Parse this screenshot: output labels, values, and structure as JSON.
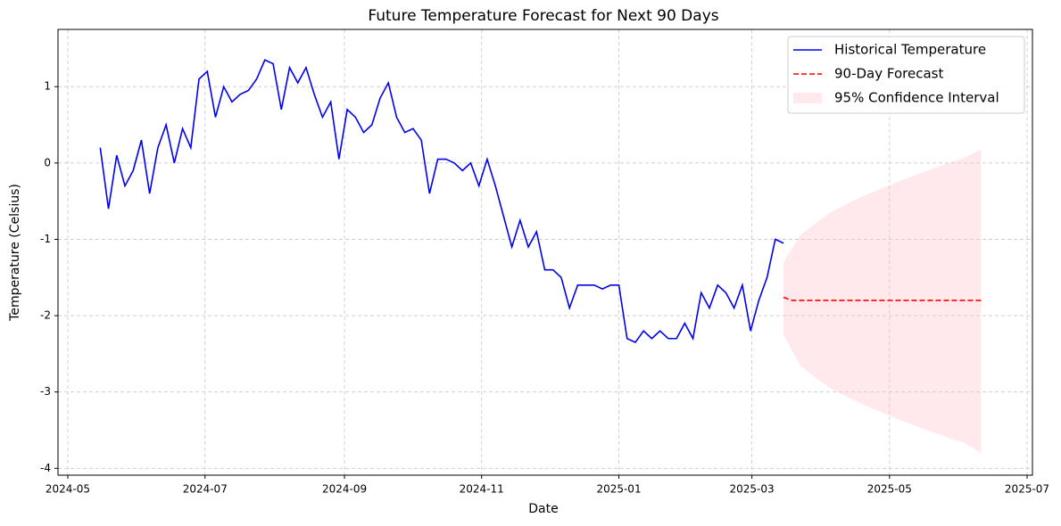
{
  "chart_data": {
    "type": "line",
    "title": "Future Temperature Forecast for Next 90 Days",
    "xlabel": "Date",
    "ylabel": "Temperature (Celsius)",
    "xlim": [
      2024.3187,
      2025.5024
    ],
    "xticks": [
      {
        "value": 2024.3306,
        "label": "2024-05"
      },
      {
        "value": 2024.4973,
        "label": "2024-07"
      },
      {
        "value": 2024.6667,
        "label": "2024-09"
      },
      {
        "value": 2024.8333,
        "label": "2024-11"
      },
      {
        "value": 2025.0,
        "label": "2025-01"
      },
      {
        "value": 2025.1616,
        "label": "2025-03"
      },
      {
        "value": 2025.3288,
        "label": "2025-05"
      },
      {
        "value": 2025.4959,
        "label": "2025-07"
      }
    ],
    "ylim": [
      -4.09,
      1.75
    ],
    "yticks": [
      -4,
      -3,
      -2,
      -1,
      0,
      1
    ],
    "grid": true,
    "legend": "upper right",
    "series": [
      {
        "name": "Historical Temperature",
        "color": "#0000ee",
        "dash": false,
        "x": [
          2024.37,
          2024.38,
          2024.39,
          2024.4,
          2024.41,
          2024.42,
          2024.43,
          2024.44,
          2024.45,
          2024.46,
          2024.47,
          2024.48,
          2024.49,
          2024.5,
          2024.51,
          2024.52,
          2024.53,
          2024.54,
          2024.55,
          2024.56,
          2024.57,
          2024.58,
          2024.59,
          2024.6,
          2024.61,
          2024.62,
          2024.63,
          2024.64,
          2024.65,
          2024.66,
          2024.67,
          2024.68,
          2024.69,
          2024.7,
          2024.71,
          2024.72,
          2024.73,
          2024.74,
          2024.75,
          2024.76,
          2024.77,
          2024.78,
          2024.79,
          2024.8,
          2024.81,
          2024.82,
          2024.83,
          2024.84,
          2024.85,
          2024.86,
          2024.87,
          2024.88,
          2024.89,
          2024.9,
          2024.91,
          2024.92,
          2024.93,
          2024.94,
          2024.95,
          2024.96,
          2024.97,
          2024.98,
          2024.99,
          2025.0,
          2025.01,
          2025.02,
          2025.03,
          2025.04,
          2025.05,
          2025.06,
          2025.07,
          2025.08,
          2025.09,
          2025.1,
          2025.11,
          2025.12,
          2025.13,
          2025.14,
          2025.15,
          2025.16,
          2025.17,
          2025.18,
          2025.19,
          2025.2
        ],
        "values": [
          0.2,
          -0.6,
          0.1,
          -0.3,
          -0.1,
          0.3,
          -0.4,
          0.2,
          0.5,
          0.0,
          0.45,
          0.2,
          1.1,
          1.2,
          0.6,
          1.0,
          0.8,
          0.9,
          0.95,
          1.1,
          1.35,
          1.3,
          0.7,
          1.25,
          1.05,
          1.25,
          0.9,
          0.6,
          0.8,
          0.05,
          0.7,
          0.6,
          0.4,
          0.5,
          0.85,
          1.05,
          0.6,
          0.4,
          0.45,
          0.3,
          -0.4,
          0.05,
          0.05,
          0.0,
          -0.1,
          0.0,
          -0.3,
          0.05,
          -0.3,
          -0.7,
          -1.1,
          -0.75,
          -1.1,
          -0.9,
          -1.4,
          -1.4,
          -1.5,
          -1.9,
          -1.6,
          -1.6,
          -1.6,
          -1.65,
          -1.6,
          -1.6,
          -2.3,
          -2.35,
          -2.2,
          -2.3,
          -2.2,
          -2.3,
          -2.3,
          -2.1,
          -2.3,
          -1.7,
          -1.9,
          -1.6,
          -1.7,
          -1.9,
          -1.6,
          -2.2,
          -1.8,
          -1.5,
          -1.0,
          -1.05
        ]
      },
      {
        "name": "90-Day Forecast",
        "color": "#ff0000",
        "dash": true,
        "x": [
          2025.2,
          2025.21,
          2025.22,
          2025.24,
          2025.26,
          2025.28,
          2025.3,
          2025.32,
          2025.34,
          2025.36,
          2025.38,
          2025.4,
          2025.42,
          2025.44
        ],
        "values": [
          -1.76,
          -1.8,
          -1.8,
          -1.8,
          -1.8,
          -1.8,
          -1.8,
          -1.8,
          -1.8,
          -1.8,
          -1.8,
          -1.8,
          -1.8,
          -1.8
        ]
      }
    ],
    "band": {
      "name": "95% Confidence Interval",
      "color": "#ffc0cb",
      "x": [
        2025.2,
        2025.22,
        2025.24,
        2025.26,
        2025.28,
        2025.3,
        2025.32,
        2025.34,
        2025.36,
        2025.38,
        2025.4,
        2025.42,
        2025.44
      ],
      "upper": [
        -1.3,
        -0.95,
        -0.78,
        -0.63,
        -0.52,
        -0.42,
        -0.33,
        -0.24,
        -0.16,
        -0.08,
        0.0,
        0.07,
        0.18
      ],
      "lower": [
        -2.25,
        -2.65,
        -2.82,
        -2.97,
        -3.08,
        -3.18,
        -3.27,
        -3.36,
        -3.44,
        -3.52,
        -3.6,
        -3.67,
        -3.8
      ]
    }
  }
}
